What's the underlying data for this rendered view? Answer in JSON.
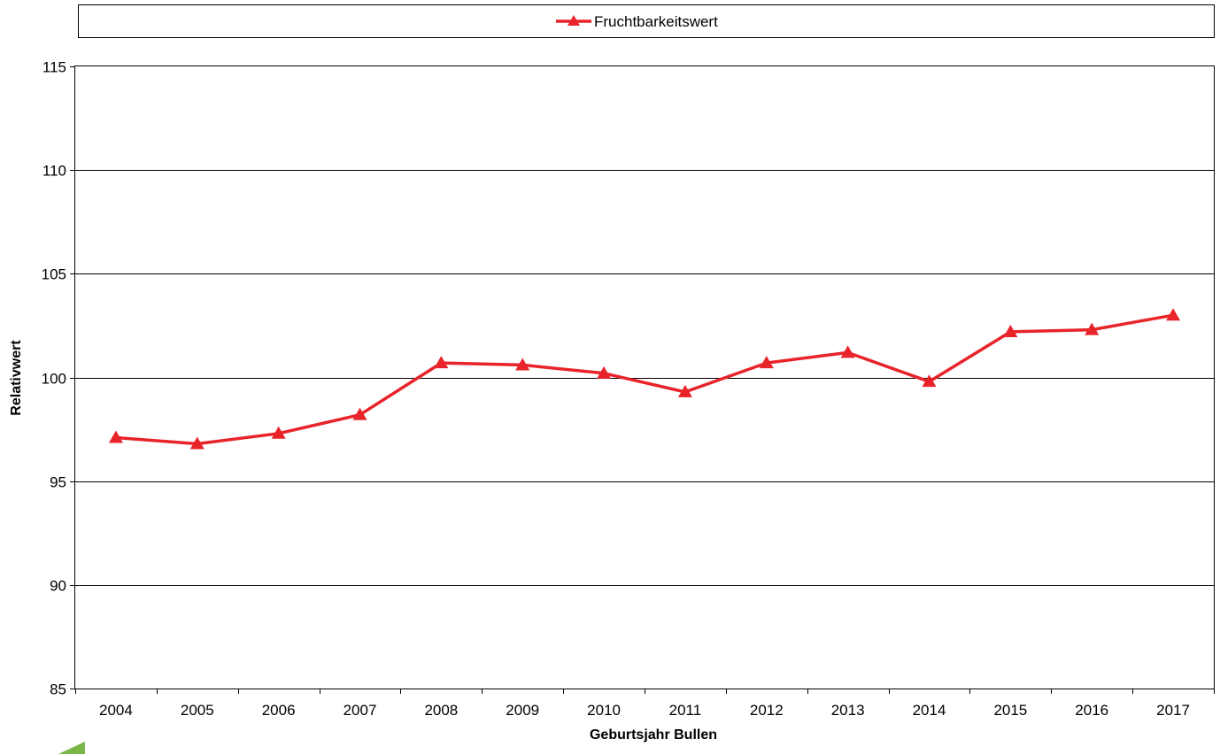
{
  "chart_data": {
    "type": "line",
    "title": "",
    "xlabel": "Geburtsjahr Bullen",
    "ylabel": "Relativwert",
    "categories": [
      "2004",
      "2005",
      "2006",
      "2007",
      "2008",
      "2009",
      "2010",
      "2011",
      "2012",
      "2013",
      "2014",
      "2015",
      "2016",
      "2017"
    ],
    "y_ticks": [
      "85",
      "90",
      "95",
      "100",
      "105",
      "110",
      "115"
    ],
    "ylim": [
      85,
      115
    ],
    "grid": true,
    "legend_position": "top",
    "series": [
      {
        "name": "Fruchtbarkeitswert",
        "color": "#e8232a",
        "marker": "triangle",
        "values": [
          97.1,
          96.8,
          97.3,
          98.2,
          100.7,
          100.6,
          100.2,
          99.3,
          100.7,
          101.2,
          99.8,
          102.2,
          102.3,
          103.0
        ]
      }
    ]
  }
}
